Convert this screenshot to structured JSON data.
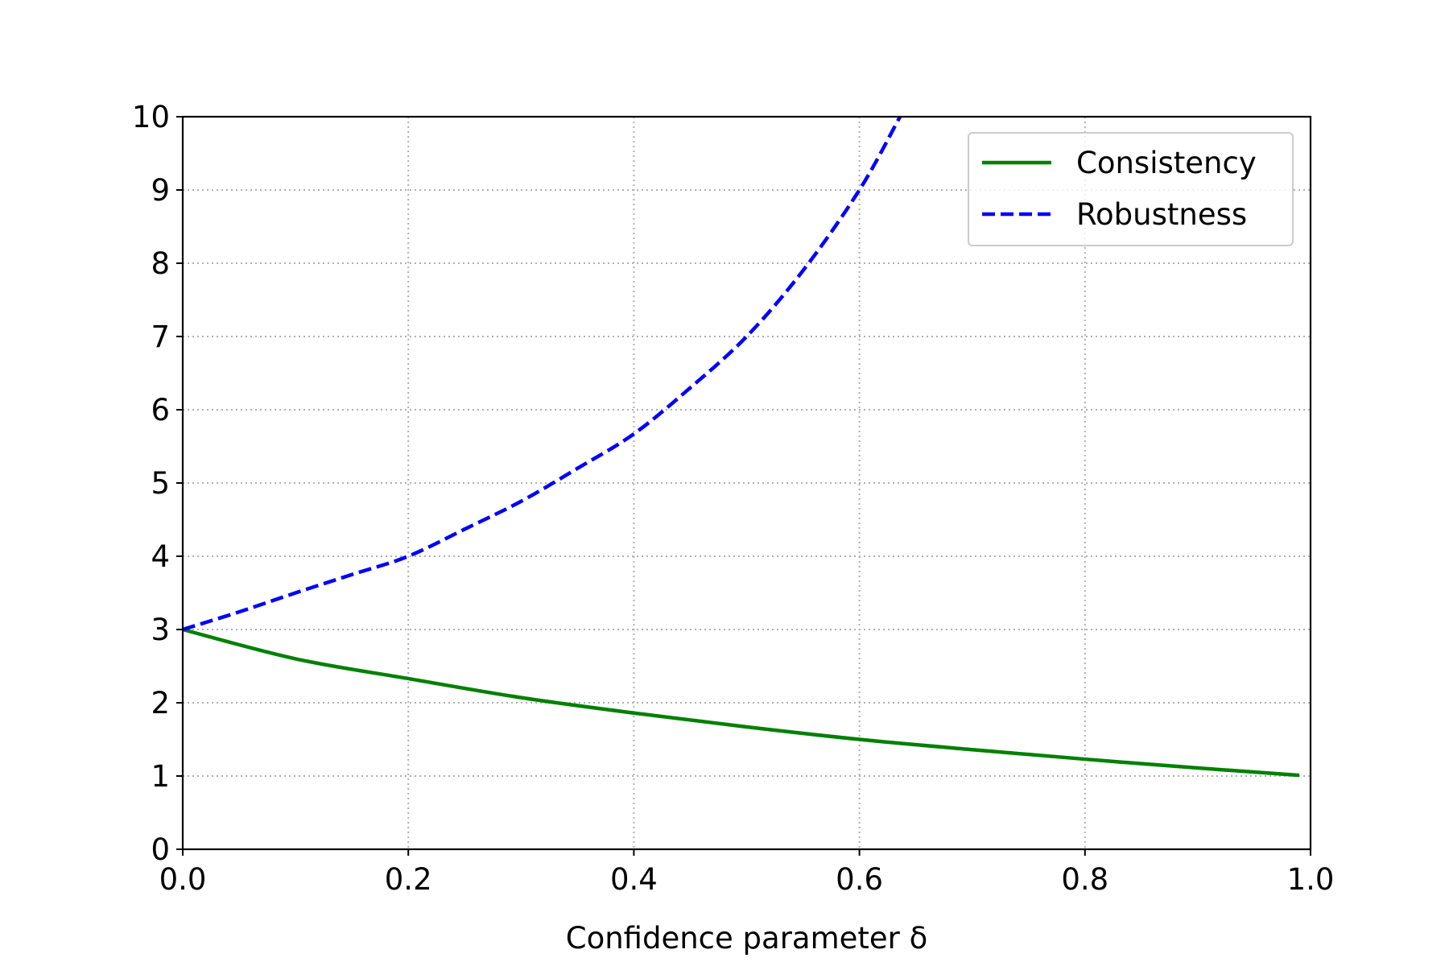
{
  "chart_data": {
    "type": "line",
    "title": "",
    "xlabel": "Confidence parameter δ",
    "ylabel": "",
    "xlim": [
      0.0,
      1.0
    ],
    "ylim": [
      0,
      10
    ],
    "x_ticks": [
      "0.0",
      "0.2",
      "0.4",
      "0.6",
      "0.8",
      "1.0"
    ],
    "y_ticks": [
      "0",
      "1",
      "2",
      "3",
      "4",
      "5",
      "6",
      "7",
      "8",
      "9",
      "10"
    ],
    "grid": true,
    "legend_position": "upper right",
    "series": [
      {
        "name": "Consistency",
        "color": "#008000",
        "style": "solid",
        "x": [
          0.0,
          0.1,
          0.2,
          0.3,
          0.4,
          0.5,
          0.6,
          0.7,
          0.8,
          0.9,
          0.99
        ],
        "y": [
          3.0,
          2.6,
          2.33,
          2.07,
          1.86,
          1.67,
          1.5,
          1.36,
          1.23,
          1.11,
          1.01
        ]
      },
      {
        "name": "Robustness",
        "color": "#0000ff",
        "style": "dashed",
        "x": [
          0.0,
          0.05,
          0.1,
          0.15,
          0.2,
          0.25,
          0.3,
          0.35,
          0.4,
          0.45,
          0.5,
          0.55,
          0.6,
          0.636
        ],
        "y": [
          3.0,
          3.24,
          3.5,
          3.75,
          4.0,
          4.37,
          4.75,
          5.2,
          5.67,
          6.3,
          7.0,
          7.9,
          9.0,
          10.0
        ]
      }
    ]
  }
}
